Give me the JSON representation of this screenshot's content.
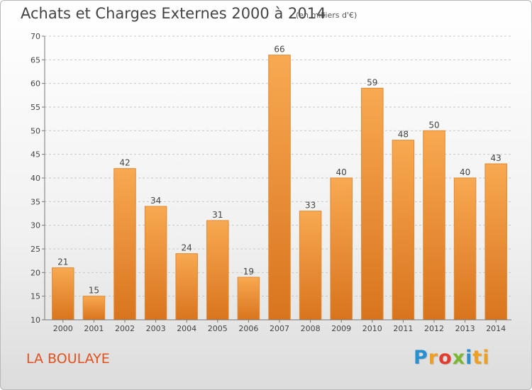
{
  "title": "Achats et Charges Externes 2000 à 2014",
  "unit": "(en milliers d'€)",
  "commune": "LA BOULAYE",
  "logo": "Proxiti",
  "chart_data": {
    "type": "bar",
    "title": "Achats et Charges Externes 2000 à 2014",
    "subtitle": "(en milliers d'€)",
    "categories": [
      "2000",
      "2001",
      "2002",
      "2003",
      "2004",
      "2005",
      "2006",
      "2007",
      "2008",
      "2009",
      "2010",
      "2011",
      "2012",
      "2013",
      "2014"
    ],
    "values": [
      21,
      15,
      42,
      34,
      24,
      31,
      19,
      66,
      33,
      40,
      59,
      48,
      50,
      40,
      43
    ],
    "ylim": [
      10,
      70
    ],
    "yticks": [
      10,
      15,
      20,
      25,
      30,
      35,
      40,
      45,
      50,
      55,
      60,
      65,
      70
    ],
    "grid": true,
    "bar_color": "#f0973c"
  }
}
